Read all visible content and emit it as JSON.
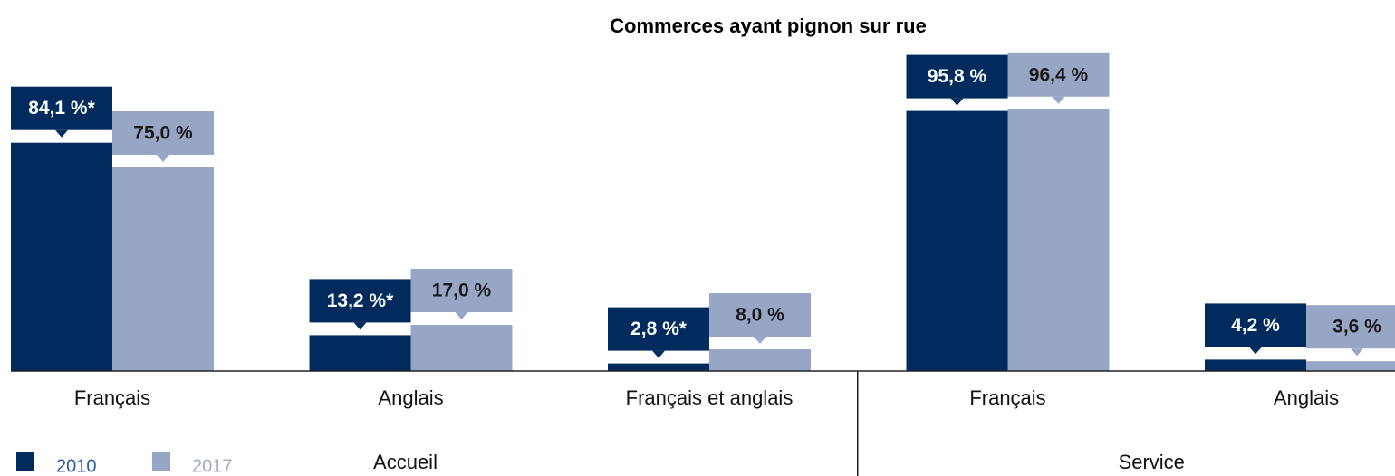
{
  "chart_data": {
    "type": "bar",
    "title": "Commerces ayant pignon sur rue",
    "groups": [
      {
        "name": "Accueil",
        "categories": [
          "Français",
          "Anglais",
          "Français et anglais"
        ]
      },
      {
        "name": "Service",
        "categories": [
          "Français",
          "Anglais"
        ]
      }
    ],
    "series": [
      {
        "name": "2010",
        "color": "#002b5c",
        "legend_text_color": "#2c5aa0",
        "label_text_color": "#ffffff",
        "values": [
          84.1,
          13.2,
          2.8,
          95.8,
          4.2
        ],
        "value_labels": [
          "84,1 %*",
          "13,2 %*",
          "2,8 %*",
          "95,8 %",
          "4,2 %"
        ]
      },
      {
        "name": "2017",
        "color": "#98a6c6",
        "legend_text_color": "#a3abbd",
        "label_text_color": "#1a1a1a",
        "values": [
          75.0,
          17.0,
          8.0,
          96.4,
          3.6
        ],
        "value_labels": [
          "75,0 %",
          "17,0 %",
          "8,0 %",
          "96,4 %",
          "3,6 %"
        ]
      }
    ]
  }
}
